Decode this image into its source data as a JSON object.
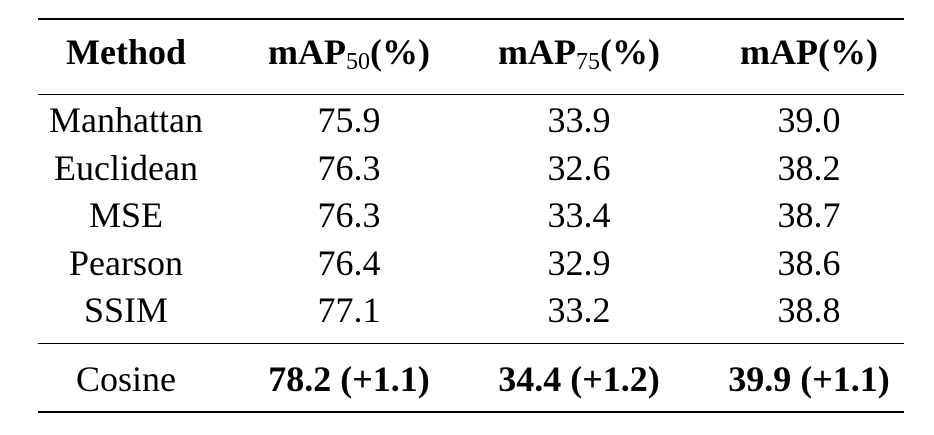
{
  "table": {
    "header": {
      "method": "Method",
      "col1": {
        "prefix": "mAP",
        "sub": "50",
        "suffix": "(%)"
      },
      "col2": {
        "prefix": "mAP",
        "sub": "75",
        "suffix": "(%)"
      },
      "col3": "mAP(%)"
    },
    "rows": [
      {
        "method": "Manhattan",
        "map50": "75.9",
        "map75": "33.9",
        "map": "39.0"
      },
      {
        "method": "Euclidean",
        "map50": "76.3",
        "map75": "32.6",
        "map": "38.2"
      },
      {
        "method": "MSE",
        "map50": "76.3",
        "map75": "33.4",
        "map": "38.7"
      },
      {
        "method": "Pearson",
        "map50": "76.4",
        "map75": "32.9",
        "map": "38.6"
      },
      {
        "method": "SSIM",
        "map50": "77.1",
        "map75": "33.2",
        "map": "38.8"
      }
    ],
    "final_row": {
      "method": "Cosine",
      "map50": "78.2 (+1.1)",
      "map75": "34.4 (+1.2)",
      "map": "39.9 (+1.1)"
    }
  }
}
